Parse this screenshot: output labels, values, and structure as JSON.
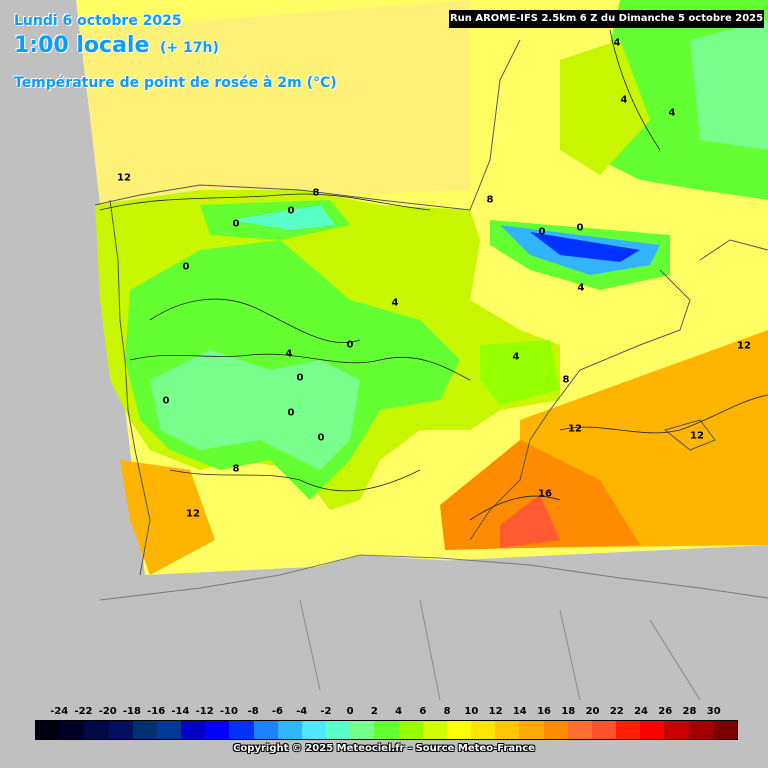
{
  "header": {
    "date": "Lundi 6 octobre 2025",
    "time": "1:00 locale",
    "lead": "(+ 17h)",
    "parameter": "Température de point de rosée à 2m (°C)",
    "run": "Run AROME-IFS 2.5km 6 Z du Dimanche 5 octobre 2025"
  },
  "contour_labels": [
    "12",
    "8",
    "0",
    "0",
    "0",
    "8",
    "0",
    "0",
    "4",
    "4",
    "0",
    "4",
    "0",
    "0",
    "0",
    "0",
    "8",
    "12",
    "4",
    "4",
    "4",
    "4",
    "8",
    "12",
    "12",
    "16",
    "12"
  ],
  "legend": {
    "ticks": [
      "-24",
      "-22",
      "-20",
      "-18",
      "-16",
      "-14",
      "-12",
      "-10",
      "-8",
      "-6",
      "-4",
      "-2",
      "0",
      "2",
      "4",
      "6",
      "8",
      "10",
      "12",
      "14",
      "16",
      "18",
      "20",
      "22",
      "24",
      "26",
      "28",
      "30"
    ],
    "colors": [
      "#000010",
      "#00002a",
      "#000845",
      "#00105e",
      "#00306e",
      "#003a96",
      "#0000c8",
      "#0000ff",
      "#0032ff",
      "#1e82ff",
      "#32b4ff",
      "#50e6ff",
      "#5affc8",
      "#78ff8c",
      "#64ff32",
      "#96ff00",
      "#d2ff00",
      "#ffff00",
      "#ffe600",
      "#ffc800",
      "#ffaa00",
      "#ff8c00",
      "#ff6e32",
      "#ff5032",
      "#ff1e00",
      "#ff0000",
      "#c80000",
      "#a00000",
      "#780000"
    ]
  },
  "copyright": "Copyright © 2025 Meteociel.fr - Source Meteo-France"
}
